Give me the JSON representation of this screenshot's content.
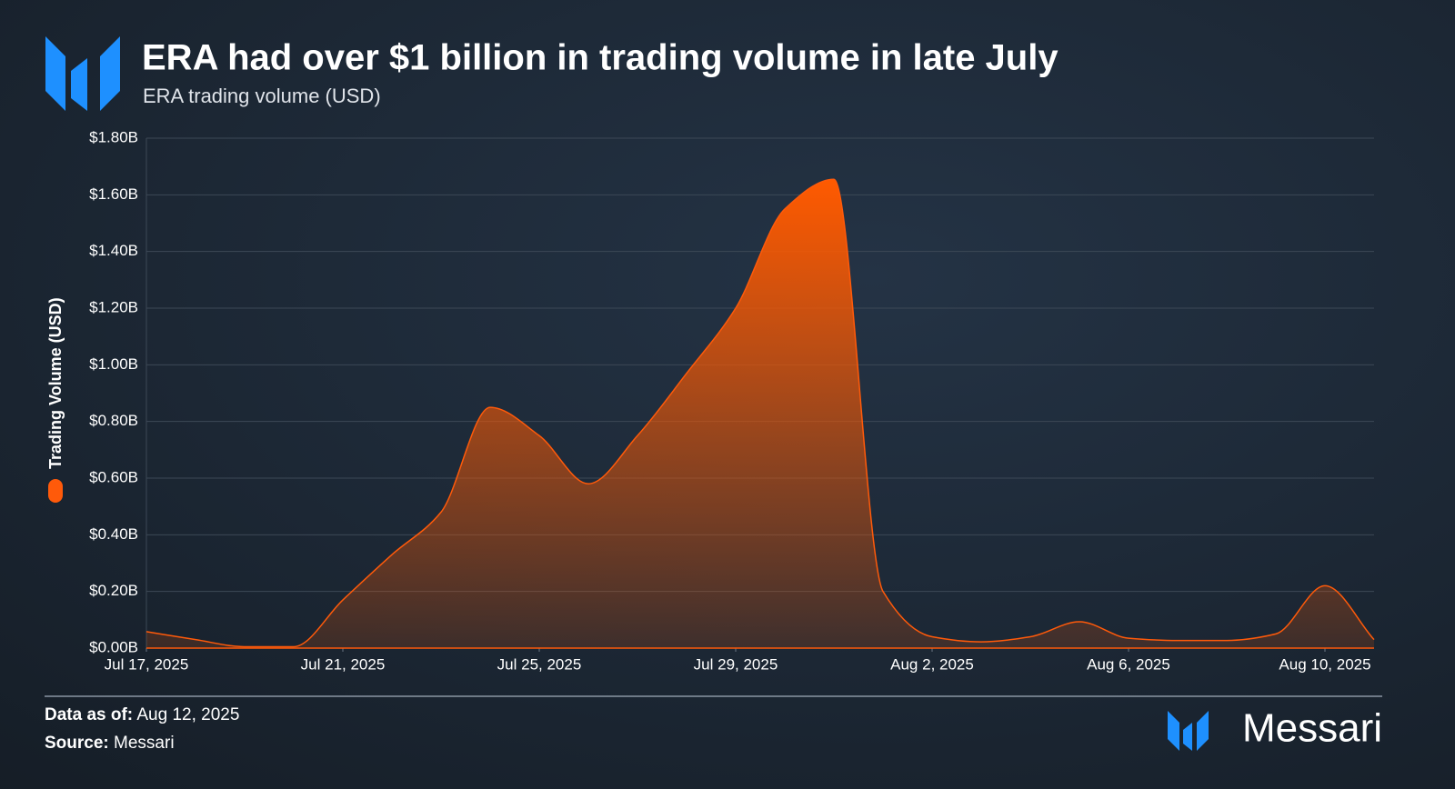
{
  "chart_data": {
    "type": "area",
    "title": "ERA had over $1 billion in trading volume in late July",
    "subtitle": "ERA trading volume (USD)",
    "x": [
      "2025-07-17",
      "2025-07-18",
      "2025-07-19",
      "2025-07-20",
      "2025-07-21",
      "2025-07-22",
      "2025-07-23",
      "2025-07-24",
      "2025-07-25",
      "2025-07-26",
      "2025-07-27",
      "2025-07-28",
      "2025-07-29",
      "2025-07-30",
      "2025-07-31",
      "2025-08-01",
      "2025-08-02",
      "2025-08-03",
      "2025-08-04",
      "2025-08-05",
      "2025-08-06",
      "2025-08-07",
      "2025-08-08",
      "2025-08-09",
      "2025-08-10",
      "2025-08-11"
    ],
    "series": [
      {
        "name": "Trading Volume (USD)",
        "color": "#ff5a0a",
        "values": [
          0.058,
          0.03,
          0.005,
          0.005,
          0.17,
          0.33,
          0.48,
          0.85,
          0.75,
          0.58,
          0.75,
          0.97,
          1.2,
          1.55,
          1.655,
          0.2,
          0.04,
          0.022,
          0.04,
          0.093,
          0.035,
          0.027,
          0.027,
          0.05,
          0.22,
          0.03
        ]
      }
    ],
    "xticks": [
      {
        "value": "2025-07-17",
        "label": "Jul 17, 2025"
      },
      {
        "value": "2025-07-21",
        "label": "Jul 21, 2025"
      },
      {
        "value": "2025-07-25",
        "label": "Jul 25, 2025"
      },
      {
        "value": "2025-07-29",
        "label": "Jul 29, 2025"
      },
      {
        "value": "2025-08-02",
        "label": "Aug 2, 2025"
      },
      {
        "value": "2025-08-06",
        "label": "Aug 6, 2025"
      },
      {
        "value": "2025-08-10",
        "label": "Aug 10, 2025"
      }
    ],
    "ylim": [
      0,
      1.8
    ],
    "yticks": [
      {
        "value": 0,
        "label": "$0.00B"
      },
      {
        "value": 0.2,
        "label": "$0.20B"
      },
      {
        "value": 0.4,
        "label": "$0.40B"
      },
      {
        "value": 0.6,
        "label": "$0.60B"
      },
      {
        "value": 0.8,
        "label": "$0.80B"
      },
      {
        "value": 1.0,
        "label": "$1.00B"
      },
      {
        "value": 1.2,
        "label": "$1.20B"
      },
      {
        "value": 1.4,
        "label": "$1.40B"
      },
      {
        "value": 1.6,
        "label": "$1.60B"
      },
      {
        "value": 1.8,
        "label": "$1.80B"
      }
    ],
    "grid": true,
    "footer": {
      "date_label": "Data as of:",
      "date": "Aug 12, 2025",
      "source_label": "Source:",
      "source": "Messari"
    },
    "brand": "Messari"
  }
}
